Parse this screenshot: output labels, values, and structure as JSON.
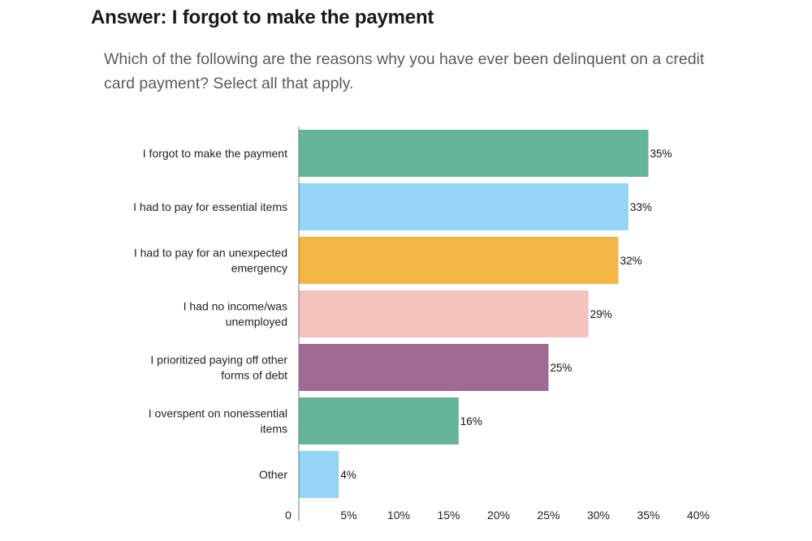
{
  "header": {
    "answer_title": "Answer: I forgot to make the payment",
    "question": "Which of the following are the reasons why you have ever been delinquent on a credit card payment? Select all that apply."
  },
  "chart_data": {
    "type": "bar",
    "orientation": "horizontal",
    "categories": [
      [
        "I forgot to make the payment"
      ],
      [
        "I had to pay for essential items"
      ],
      [
        "I had to pay for an unexpected",
        "emergency"
      ],
      [
        "I had no income/was",
        "unemployed"
      ],
      [
        "I prioritized paying off other",
        "forms of debt"
      ],
      [
        "I overspent on nonessential",
        "items"
      ],
      [
        "Other"
      ]
    ],
    "values": [
      35,
      33,
      32,
      29,
      25,
      16,
      4
    ],
    "value_labels": [
      "35%",
      "33%",
      "32%",
      "29%",
      "25%",
      "16%",
      "4%"
    ],
    "colors": [
      "#63b596",
      "#93d4f7",
      "#f5b743",
      "#f6c2bd",
      "#9e6a91",
      "#63b596",
      "#93d4f7"
    ],
    "xlim": [
      0,
      40
    ],
    "x_ticks": [
      0,
      5,
      10,
      15,
      20,
      25,
      30,
      35,
      40
    ],
    "x_tick_labels": [
      "0",
      "5%",
      "10%",
      "15%",
      "20%",
      "25%",
      "30%",
      "35%",
      "40%"
    ],
    "axis_color": "#7a7a7a",
    "grid": false,
    "legend": "none"
  }
}
